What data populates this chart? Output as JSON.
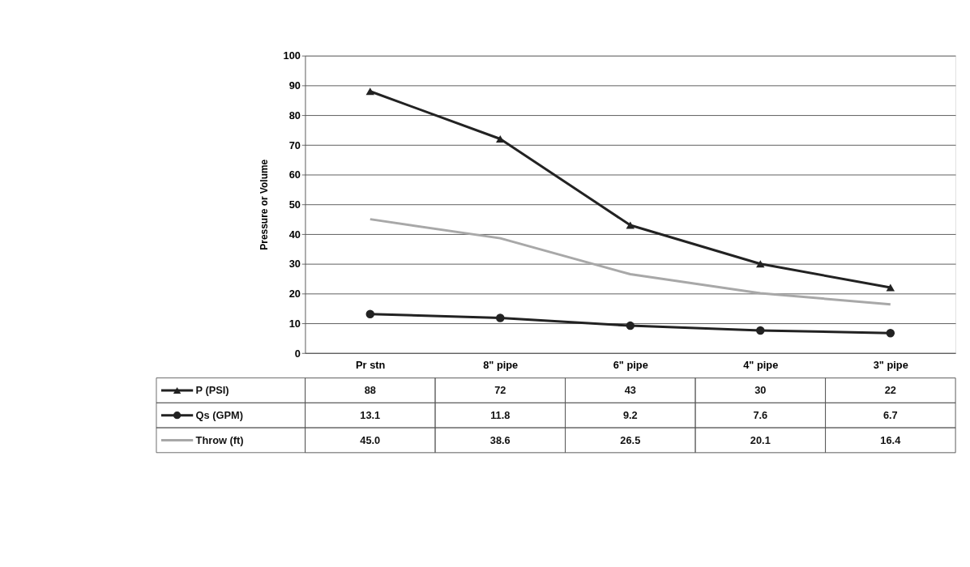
{
  "chart_data": {
    "type": "line",
    "ylabel": "Pressure or Volume",
    "categories": [
      "Pr stn",
      "8\" pipe",
      "6\" pipe",
      "4\" pipe",
      "3\" pipe"
    ],
    "series": [
      {
        "name": "P (PSI)",
        "color": "#222222",
        "marker": "triangle",
        "values": [
          88,
          72,
          43,
          30,
          22
        ],
        "value_labels": [
          "88",
          "72",
          "43",
          "30",
          "22"
        ]
      },
      {
        "name": "Qs (GPM)",
        "color": "#222222",
        "marker": "circle",
        "values": [
          13.1,
          11.8,
          9.2,
          7.6,
          6.7
        ],
        "value_labels": [
          "13.1",
          "11.8",
          "9.2",
          "7.6",
          "6.7"
        ]
      },
      {
        "name": "Throw (ft)",
        "color": "#a8a8a8",
        "marker": "none",
        "values": [
          45.0,
          38.6,
          26.5,
          20.1,
          16.4
        ],
        "value_labels": [
          "45.0",
          "38.6",
          "26.5",
          "20.1",
          "16.4"
        ]
      }
    ],
    "ylim": [
      0,
      100
    ],
    "yticks": [
      0,
      10,
      20,
      30,
      40,
      50,
      60,
      70,
      80,
      90,
      100
    ],
    "grid": "y",
    "legend": "bottom left",
    "data_labels": true
  }
}
